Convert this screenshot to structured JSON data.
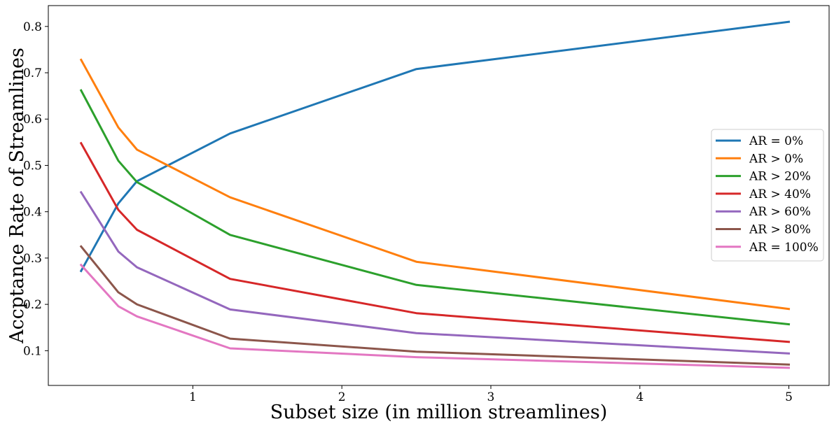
{
  "chart_data": {
    "type": "line",
    "title": "",
    "xlabel": "Subset size (in million streamlines)",
    "ylabel": "Accptance Rate of Streamlines",
    "xlim": [
      0.03,
      5.27
    ],
    "ylim": [
      0.025,
      0.845
    ],
    "xticks": [
      1,
      2,
      3,
      4,
      5
    ],
    "yticks": [
      0.1,
      0.2,
      0.3,
      0.4,
      0.5,
      0.6,
      0.7,
      0.8
    ],
    "ytick_labels": [
      "0.1",
      "0.2",
      "0.3",
      "0.4",
      "0.5",
      "0.6",
      "0.7",
      "0.8"
    ],
    "grid": false,
    "legend": "center-right",
    "x": [
      0.25,
      0.5,
      0.625,
      1.25,
      2.5,
      5
    ],
    "series": [
      {
        "name": "AR = 0%",
        "color": "#1f77b4",
        "values": [
          0.272,
          0.418,
          0.466,
          0.569,
          0.708,
          0.81
        ]
      },
      {
        "name": "AR > 0%",
        "color": "#ff7f0e",
        "values": [
          0.728,
          0.582,
          0.534,
          0.431,
          0.292,
          0.19
        ]
      },
      {
        "name": "AR > 20%",
        "color": "#2ca02c",
        "values": [
          0.662,
          0.51,
          0.464,
          0.35,
          0.242,
          0.157
        ]
      },
      {
        "name": "AR > 40%",
        "color": "#d62728",
        "values": [
          0.548,
          0.404,
          0.361,
          0.255,
          0.181,
          0.119
        ]
      },
      {
        "name": "AR > 60%",
        "color": "#9467bd",
        "values": [
          0.442,
          0.314,
          0.28,
          0.189,
          0.138,
          0.094
        ]
      },
      {
        "name": "AR > 80%",
        "color": "#8c564b",
        "values": [
          0.325,
          0.226,
          0.2,
          0.126,
          0.098,
          0.07
        ]
      },
      {
        "name": "AR = 100%",
        "color": "#e377c2",
        "values": [
          0.285,
          0.196,
          0.174,
          0.105,
          0.086,
          0.063
        ]
      }
    ]
  }
}
